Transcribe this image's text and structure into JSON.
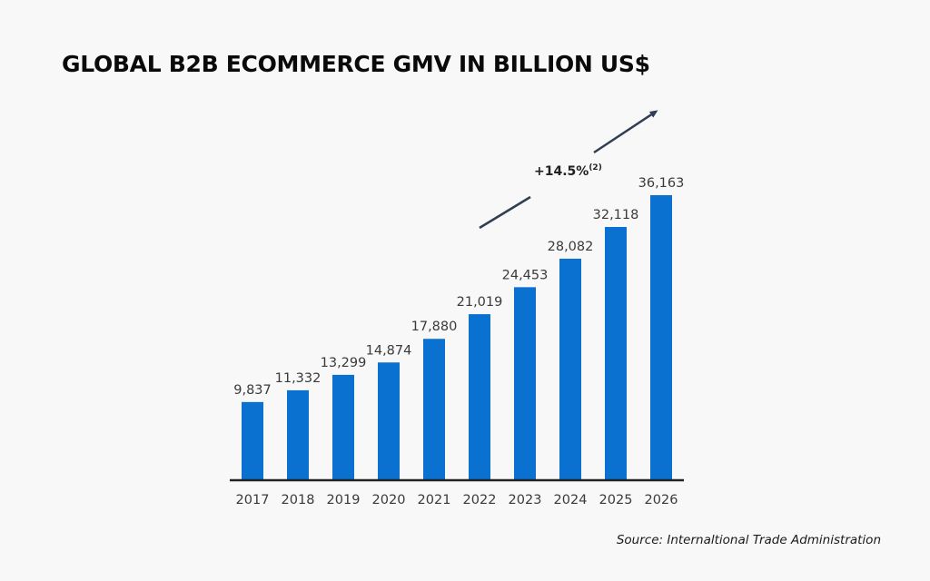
{
  "title": "GLOBAL B2B ECOMMERCE GMV IN BILLION US$",
  "source": "Source: Internaltional Trade Administration",
  "annotation": {
    "text": "+14.5%",
    "superscript": "(2)"
  },
  "colors": {
    "bar": "#0a71d1",
    "axis": "#222222",
    "arrow": "#2f3e53",
    "text": "#3a3a3a"
  },
  "chart_data": {
    "type": "bar",
    "title": "GLOBAL B2B ECOMMERCE GMV IN BILLION US$",
    "xlabel": "",
    "ylabel": "",
    "categories": [
      "2017",
      "2018",
      "2019",
      "2020",
      "2021",
      "2022",
      "2023",
      "2024",
      "2025",
      "2026"
    ],
    "values": [
      9837,
      11332,
      13299,
      14874,
      17880,
      21019,
      24453,
      28082,
      32118,
      36163
    ],
    "data_labels": [
      "9,837",
      "11,332",
      "13,299",
      "14,874",
      "17,880",
      "21,019",
      "24,453",
      "28,082",
      "32,118",
      "36,163"
    ],
    "ylim": [
      0,
      36163
    ],
    "grid": false,
    "legend": "none"
  }
}
